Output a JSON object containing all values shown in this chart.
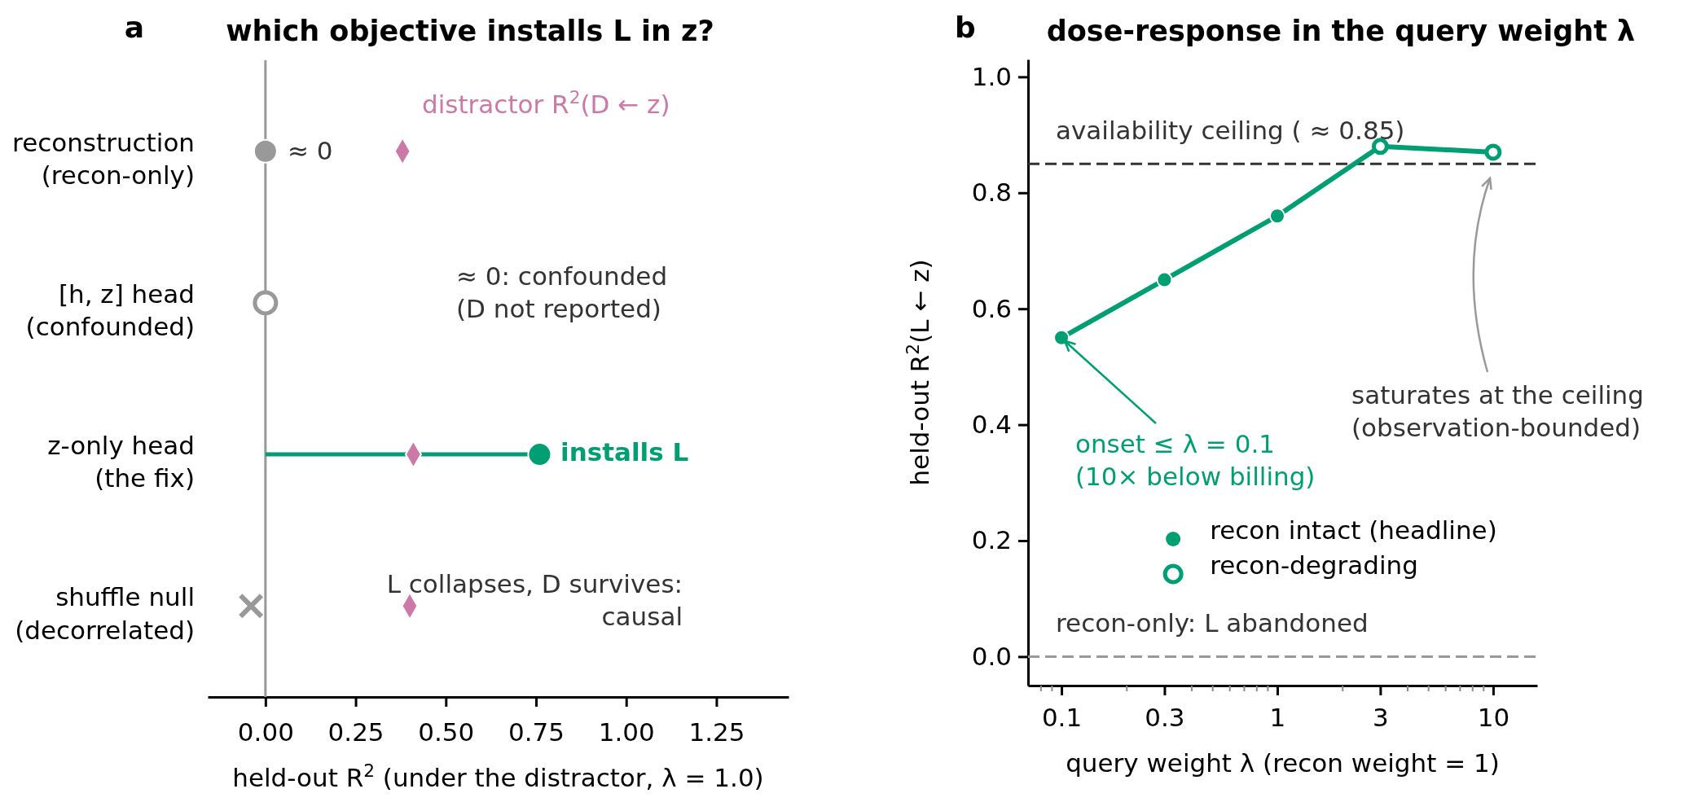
{
  "chart_data": [
    {
      "type": "scatter",
      "orientation": "horizontal",
      "title": "which objective installs L in z?",
      "xlabel": "held-out R$^{2}$  (under the distractor, λ = 1.0)",
      "categories": [
        "reconstruction\n(recon-only)",
        "[h, z] head\n(confounded)",
        "z-only head\n(the fix)",
        "shuffle null\n(decorrelated)"
      ],
      "xlim": [
        -0.16,
        1.45
      ],
      "xticks": [
        {
          "value": 0,
          "label": "0.00"
        },
        {
          "value": 0.25,
          "label": "0.25"
        },
        {
          "value": 0.5,
          "label": "0.50"
        },
        {
          "value": 0.75,
          "label": "0.75"
        },
        {
          "value": 1,
          "label": "1.00"
        },
        {
          "value": 1.25,
          "label": "1.25"
        }
      ],
      "ref_lines": [
        {
          "axis": "x",
          "value": 0,
          "color": "#999999",
          "line_style": "solid"
        }
      ],
      "series": [
        {
          "color": "#999999",
          "marker": "circle",
          "values": [
            0,
            null,
            null,
            null
          ]
        },
        {
          "color": "#999999",
          "marker": "circle",
          "values": [
            null,
            0,
            null,
            null
          ]
        },
        {
          "type": "lollipop",
          "color": "#009e73",
          "marker": "circle",
          "values": [
            null,
            null,
            0.76,
            null
          ]
        },
        {
          "color": "#999999",
          "marker": "cross",
          "values": [
            null,
            null,
            null,
            -0.04
          ]
        },
        {
          "color": "#cc79a7",
          "marker": "diamond",
          "values": [
            0.38,
            null,
            0.41,
            0.4
          ]
        }
      ],
      "annotations": [
        "a",
        "distractor R$^{2}$(D ← z)",
        "≈ 0",
        "≈ 0: confounded\n(D not reported)",
        "installs L",
        "L collapses, D survives:\ncausal"
      ]
    },
    {
      "type": "line",
      "title": "dose-response in the query weight λ",
      "xlabel": "query weight  λ  (recon weight  =  1)",
      "ylabel": "held-out R$^{2}$(L ← z)",
      "log": "x",
      "x": [
        0.1,
        0.3,
        1,
        3,
        10
      ],
      "xlim": [
        0.07,
        16
      ],
      "ylim": [
        -0.05,
        1.03
      ],
      "xticks": [
        {
          "value": 0.08,
          "label": null
        },
        {
          "value": 0.09,
          "label": null
        },
        0.1,
        {
          "value": 0.2,
          "label": null
        },
        0.3,
        {
          "value": 0.4,
          "label": null
        },
        {
          "value": 0.5,
          "label": null
        },
        {
          "value": 0.6,
          "label": null
        },
        {
          "value": 0.7,
          "label": null
        },
        {
          "value": 0.8,
          "label": null
        },
        {
          "value": 0.9,
          "label": null
        },
        1,
        {
          "value": 2,
          "label": null
        },
        3,
        {
          "value": 4,
          "label": null
        },
        {
          "value": 5,
          "label": null
        },
        {
          "value": 6,
          "label": null
        },
        {
          "value": 7,
          "label": null
        },
        {
          "value": 8,
          "label": null
        },
        {
          "value": 9,
          "label": null
        },
        10
      ],
      "yticks": [
        {
          "value": 0,
          "label": "0.0"
        },
        {
          "value": 0.2,
          "label": "0.2"
        },
        {
          "value": 0.4,
          "label": "0.4"
        },
        {
          "value": 0.6,
          "label": "0.6"
        },
        {
          "value": 0.8,
          "label": "0.8"
        },
        {
          "value": 1,
          "label": "1.0"
        }
      ],
      "ref_lines": [
        {
          "axis": "y",
          "value": 0.85,
          "label": "availability ceiling ( ≈ 0.85)",
          "color": "#333333",
          "line_style": "dashed"
        },
        {
          "axis": "y",
          "value": 0,
          "label": "recon-only: L abandoned",
          "color": "#999999",
          "line_style": "dashed"
        }
      ],
      "series": [
        {
          "color": "#009e73",
          "marker": "none",
          "values": [
            0.55,
            0.65,
            0.76,
            0.88,
            0.87
          ]
        },
        {
          "type": "scatter",
          "name": "recon intact (headline)",
          "color": "#009e73",
          "marker": "circle",
          "values": [
            0.55,
            0.65,
            0.76,
            null,
            null
          ]
        },
        {
          "type": "scatter",
          "name": "recon-degrading",
          "color": "#009e73",
          "marker": "circle",
          "values": [
            null,
            null,
            null,
            0.88,
            0.87
          ]
        }
      ],
      "legend": "bottom",
      "annotations": [
        "b",
        {
          "text": "onset  ≤ λ = 0.1\n(10× below billing)",
          "x": 0.1,
          "y": 0.55
        },
        "saturates at the ceiling\n(observation-bounded)"
      ]
    }
  ]
}
